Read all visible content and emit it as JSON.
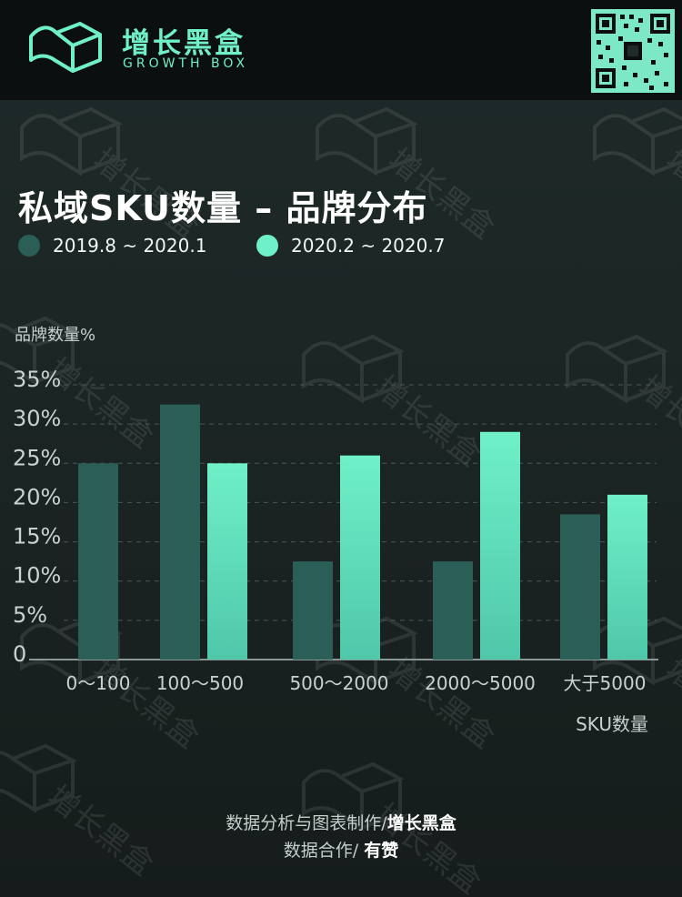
{
  "header": {
    "brand_cn": "增长黑盒",
    "brand_en": "GROWTH BOX",
    "logo_icon": "growth-box-logo-icon",
    "qr_icon": "qr-code-icon",
    "accent_color": "#6ff0c8"
  },
  "watermark_text": "增长黑盒",
  "chart_data": {
    "type": "bar",
    "title": "私域SKU数量 – 品牌分布",
    "ylabel": "品牌数量%",
    "xlabel": "SKU数量",
    "categories": [
      "0～100",
      "100～500",
      "500～2000",
      "2000～5000",
      "大于5000"
    ],
    "yticks": [
      "0",
      "5%",
      "10%",
      "15%",
      "20%",
      "25%",
      "30%",
      "35%"
    ],
    "ylim": [
      0,
      35
    ],
    "grid": true,
    "legend_position": "top-left",
    "series": [
      {
        "name": "2019.8 ~ 2020.1",
        "color": "#2a5e57",
        "values": [
          25,
          32.5,
          12.5,
          12.5,
          18.5
        ]
      },
      {
        "name": "2020.2 ~ 2020.7",
        "color": "#6ff0c8",
        "values": [
          null,
          25,
          26,
          29,
          21
        ]
      }
    ]
  },
  "footer": {
    "line1_prefix": "数据分析与图表制作/",
    "line1_brand": "增长黑盒",
    "line2_prefix": "数据合作/ ",
    "line2_brand": "有赞"
  }
}
